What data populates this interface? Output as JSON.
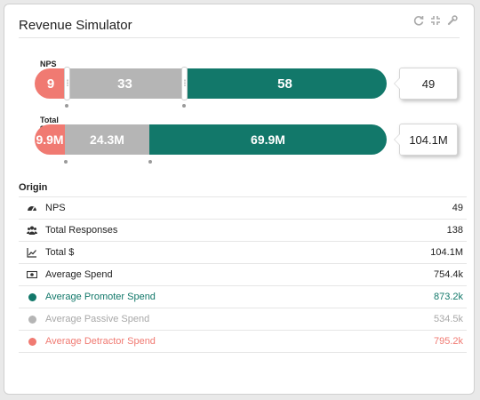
{
  "card": {
    "title": "Revenue Simulator",
    "tools": [
      "refresh-icon",
      "collapse-icon",
      "wrench-icon"
    ]
  },
  "sliders": [
    {
      "label": "NPS",
      "detractor_label": "9",
      "passive_label": "33",
      "promoter_label": "58",
      "result": "49"
    },
    {
      "label": "Total $",
      "detractor_label": "9.9M",
      "passive_label": "24.3M",
      "promoter_label": "69.9M",
      "result": "104.1M"
    }
  ],
  "origin": {
    "title": "Origin",
    "rows": [
      {
        "icon": "gauge-icon",
        "label": "NPS",
        "value": "49"
      },
      {
        "icon": "users-icon",
        "label": "Total Responses",
        "value": "138"
      },
      {
        "icon": "line-chart-icon",
        "label": "Total $",
        "value": "104.1M"
      },
      {
        "icon": "money-icon",
        "label": "Average Spend",
        "value": "754.4k"
      },
      {
        "icon": "promoter-dot-icon",
        "label": "Average Promoter Spend",
        "value": "873.2k"
      },
      {
        "icon": "passive-dot-icon",
        "label": "Average Passive Spend",
        "value": "534.5k"
      },
      {
        "icon": "detractor-dot-icon",
        "label": "Average Detractor Spend",
        "value": "795.2k"
      }
    ]
  },
  "colors": {
    "detractor": "#f07a72",
    "passive": "#b5b5b5",
    "promoter": "#12786a"
  }
}
